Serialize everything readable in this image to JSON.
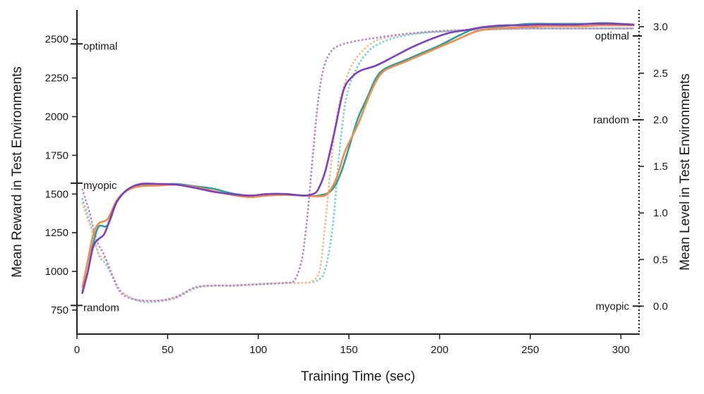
{
  "chart_data": {
    "type": "line",
    "x_axis": {
      "label": "Training Time (sec)",
      "range": [
        0,
        310
      ],
      "ticks": [
        0,
        50,
        100,
        150,
        200,
        250,
        300
      ],
      "tick_labels": [
        "0",
        "50",
        "100",
        "150",
        "200",
        "250",
        "300"
      ]
    },
    "y_left": {
      "label": "Mean Reward in Test Environments",
      "range": [
        595,
        2690
      ],
      "ticks": [
        750,
        1000,
        1250,
        1500,
        1750,
        2000,
        2250,
        2500
      ],
      "tick_labels": [
        "750",
        "1000",
        "1250",
        "1500",
        "1750",
        "2000",
        "2250",
        "2500"
      ],
      "reference_lines": [
        {
          "label": "optimal",
          "value": 2470
        },
        {
          "label": "myopic",
          "value": 1570
        },
        {
          "label": "random",
          "value": 780
        }
      ]
    },
    "y_right": {
      "label": "Mean Level in Test Environments",
      "range": [
        -0.3,
        3.18
      ],
      "ticks": [
        0.0,
        0.5,
        1.0,
        1.5,
        2.0,
        2.5,
        3.0
      ],
      "tick_labels": [
        "0.0",
        "0.5",
        "1.0",
        "1.5",
        "2.0",
        "2.5",
        "3.0"
      ],
      "reference_lines": [
        {
          "label": "optimal",
          "value": 2.9
        },
        {
          "label": "random",
          "value": 2.0
        },
        {
          "label": "myopic",
          "value": 0.0
        }
      ]
    },
    "series": [
      {
        "name": "teal reward",
        "axis": "left",
        "style": "solid",
        "color": "#2aa198",
        "points": [
          [
            3,
            870
          ],
          [
            6,
            1000
          ],
          [
            9,
            1180
          ],
          [
            12,
            1290
          ],
          [
            17,
            1300
          ],
          [
            22,
            1450
          ],
          [
            28,
            1530
          ],
          [
            35,
            1555
          ],
          [
            45,
            1560
          ],
          [
            55,
            1565
          ],
          [
            65,
            1550
          ],
          [
            75,
            1535
          ],
          [
            85,
            1505
          ],
          [
            95,
            1490
          ],
          [
            105,
            1500
          ],
          [
            115,
            1500
          ],
          [
            125,
            1490
          ],
          [
            133,
            1490
          ],
          [
            140,
            1520
          ],
          [
            145,
            1620
          ],
          [
            150,
            1800
          ],
          [
            155,
            1990
          ],
          [
            160,
            2120
          ],
          [
            165,
            2250
          ],
          [
            170,
            2310
          ],
          [
            180,
            2360
          ],
          [
            190,
            2410
          ],
          [
            200,
            2460
          ],
          [
            210,
            2520
          ],
          [
            220,
            2570
          ],
          [
            230,
            2580
          ],
          [
            240,
            2590
          ],
          [
            250,
            2600
          ],
          [
            260,
            2600
          ],
          [
            270,
            2600
          ],
          [
            280,
            2600
          ],
          [
            290,
            2605
          ],
          [
            300,
            2600
          ],
          [
            307,
            2595
          ]
        ]
      },
      {
        "name": "orange reward",
        "axis": "left",
        "style": "solid",
        "color": "#f28a4a",
        "points": [
          [
            3,
            900
          ],
          [
            6,
            1070
          ],
          [
            9,
            1240
          ],
          [
            12,
            1310
          ],
          [
            17,
            1340
          ],
          [
            22,
            1460
          ],
          [
            28,
            1525
          ],
          [
            35,
            1550
          ],
          [
            45,
            1555
          ],
          [
            55,
            1560
          ],
          [
            65,
            1545
          ],
          [
            75,
            1520
          ],
          [
            85,
            1495
          ],
          [
            95,
            1480
          ],
          [
            105,
            1490
          ],
          [
            115,
            1495
          ],
          [
            125,
            1490
          ],
          [
            133,
            1485
          ],
          [
            138,
            1500
          ],
          [
            143,
            1600
          ],
          [
            148,
            1780
          ],
          [
            155,
            1950
          ],
          [
            160,
            2100
          ],
          [
            165,
            2230
          ],
          [
            170,
            2300
          ],
          [
            180,
            2350
          ],
          [
            190,
            2400
          ],
          [
            200,
            2450
          ],
          [
            210,
            2500
          ],
          [
            220,
            2550
          ],
          [
            230,
            2570
          ],
          [
            240,
            2575
          ],
          [
            250,
            2580
          ],
          [
            260,
            2585
          ],
          [
            270,
            2585
          ],
          [
            280,
            2585
          ],
          [
            290,
            2590
          ],
          [
            300,
            2590
          ],
          [
            307,
            2590
          ]
        ]
      },
      {
        "name": "purple reward",
        "axis": "left",
        "style": "solid",
        "color": "#7d3fc0",
        "points": [
          [
            3,
            860
          ],
          [
            6,
            1000
          ],
          [
            9,
            1160
          ],
          [
            12,
            1210
          ],
          [
            15,
            1240
          ],
          [
            18,
            1330
          ],
          [
            22,
            1450
          ],
          [
            28,
            1530
          ],
          [
            35,
            1565
          ],
          [
            45,
            1565
          ],
          [
            55,
            1560
          ],
          [
            65,
            1540
          ],
          [
            75,
            1515
          ],
          [
            85,
            1500
          ],
          [
            95,
            1490
          ],
          [
            105,
            1500
          ],
          [
            115,
            1500
          ],
          [
            125,
            1490
          ],
          [
            130,
            1500
          ],
          [
            133,
            1530
          ],
          [
            137,
            1650
          ],
          [
            142,
            1900
          ],
          [
            147,
            2170
          ],
          [
            152,
            2260
          ],
          [
            157,
            2300
          ],
          [
            165,
            2330
          ],
          [
            175,
            2390
          ],
          [
            185,
            2450
          ],
          [
            195,
            2500
          ],
          [
            205,
            2540
          ],
          [
            215,
            2560
          ],
          [
            225,
            2580
          ],
          [
            235,
            2590
          ],
          [
            245,
            2590
          ],
          [
            255,
            2595
          ],
          [
            265,
            2595
          ],
          [
            275,
            2595
          ],
          [
            285,
            2600
          ],
          [
            295,
            2600
          ],
          [
            307,
            2595
          ]
        ]
      },
      {
        "name": "teal level",
        "axis": "right",
        "style": "dotted",
        "color": "#7fd3cb",
        "points": [
          [
            3,
            1.15
          ],
          [
            8,
            0.85
          ],
          [
            12,
            0.55
          ],
          [
            16,
            0.45
          ],
          [
            20,
            0.3
          ],
          [
            25,
            0.15
          ],
          [
            35,
            0.05
          ],
          [
            45,
            0.05
          ],
          [
            55,
            0.09
          ],
          [
            65,
            0.19
          ],
          [
            75,
            0.22
          ],
          [
            85,
            0.22
          ],
          [
            95,
            0.23
          ],
          [
            105,
            0.24
          ],
          [
            115,
            0.25
          ],
          [
            125,
            0.25
          ],
          [
            133,
            0.28
          ],
          [
            137,
            0.4
          ],
          [
            141,
            0.85
          ],
          [
            144,
            1.5
          ],
          [
            147,
            2.05
          ],
          [
            150,
            2.35
          ],
          [
            155,
            2.58
          ],
          [
            160,
            2.72
          ],
          [
            165,
            2.8
          ],
          [
            175,
            2.88
          ],
          [
            190,
            2.93
          ],
          [
            205,
            2.95
          ],
          [
            225,
            2.97
          ],
          [
            250,
            2.98
          ],
          [
            280,
            2.98
          ],
          [
            307,
            2.98
          ]
        ]
      },
      {
        "name": "orange level",
        "axis": "right",
        "style": "dotted",
        "color": "#f7bb91",
        "points": [
          [
            3,
            1.1
          ],
          [
            8,
            0.82
          ],
          [
            12,
            0.56
          ],
          [
            16,
            0.5
          ],
          [
            20,
            0.32
          ],
          [
            25,
            0.14
          ],
          [
            35,
            0.06
          ],
          [
            45,
            0.06
          ],
          [
            55,
            0.1
          ],
          [
            65,
            0.2
          ],
          [
            75,
            0.22
          ],
          [
            85,
            0.22
          ],
          [
            95,
            0.23
          ],
          [
            105,
            0.24
          ],
          [
            115,
            0.25
          ],
          [
            125,
            0.25
          ],
          [
            130,
            0.27
          ],
          [
            134,
            0.4
          ],
          [
            137,
            0.9
          ],
          [
            140,
            1.5
          ],
          [
            143,
            2.0
          ],
          [
            147,
            2.35
          ],
          [
            152,
            2.6
          ],
          [
            158,
            2.75
          ],
          [
            165,
            2.85
          ],
          [
            175,
            2.9
          ],
          [
            190,
            2.94
          ],
          [
            205,
            2.96
          ],
          [
            225,
            2.97
          ],
          [
            250,
            2.98
          ],
          [
            280,
            2.98
          ],
          [
            307,
            2.98
          ]
        ]
      },
      {
        "name": "purple level",
        "axis": "right",
        "style": "dotted",
        "color": "#b98bd6",
        "points": [
          [
            3,
            1.25
          ],
          [
            7,
            1.0
          ],
          [
            11,
            0.7
          ],
          [
            15,
            0.55
          ],
          [
            19,
            0.35
          ],
          [
            24,
            0.15
          ],
          [
            32,
            0.07
          ],
          [
            45,
            0.06
          ],
          [
            55,
            0.1
          ],
          [
            65,
            0.2
          ],
          [
            75,
            0.22
          ],
          [
            85,
            0.22
          ],
          [
            95,
            0.23
          ],
          [
            105,
            0.24
          ],
          [
            115,
            0.25
          ],
          [
            120,
            0.28
          ],
          [
            124,
            0.5
          ],
          [
            127,
            0.95
          ],
          [
            130,
            1.6
          ],
          [
            133,
            2.2
          ],
          [
            136,
            2.55
          ],
          [
            140,
            2.73
          ],
          [
            145,
            2.8
          ],
          [
            155,
            2.85
          ],
          [
            165,
            2.88
          ],
          [
            180,
            2.92
          ],
          [
            200,
            2.95
          ],
          [
            225,
            2.97
          ],
          [
            250,
            2.98
          ],
          [
            280,
            2.98
          ],
          [
            307,
            2.98
          ]
        ]
      }
    ]
  }
}
